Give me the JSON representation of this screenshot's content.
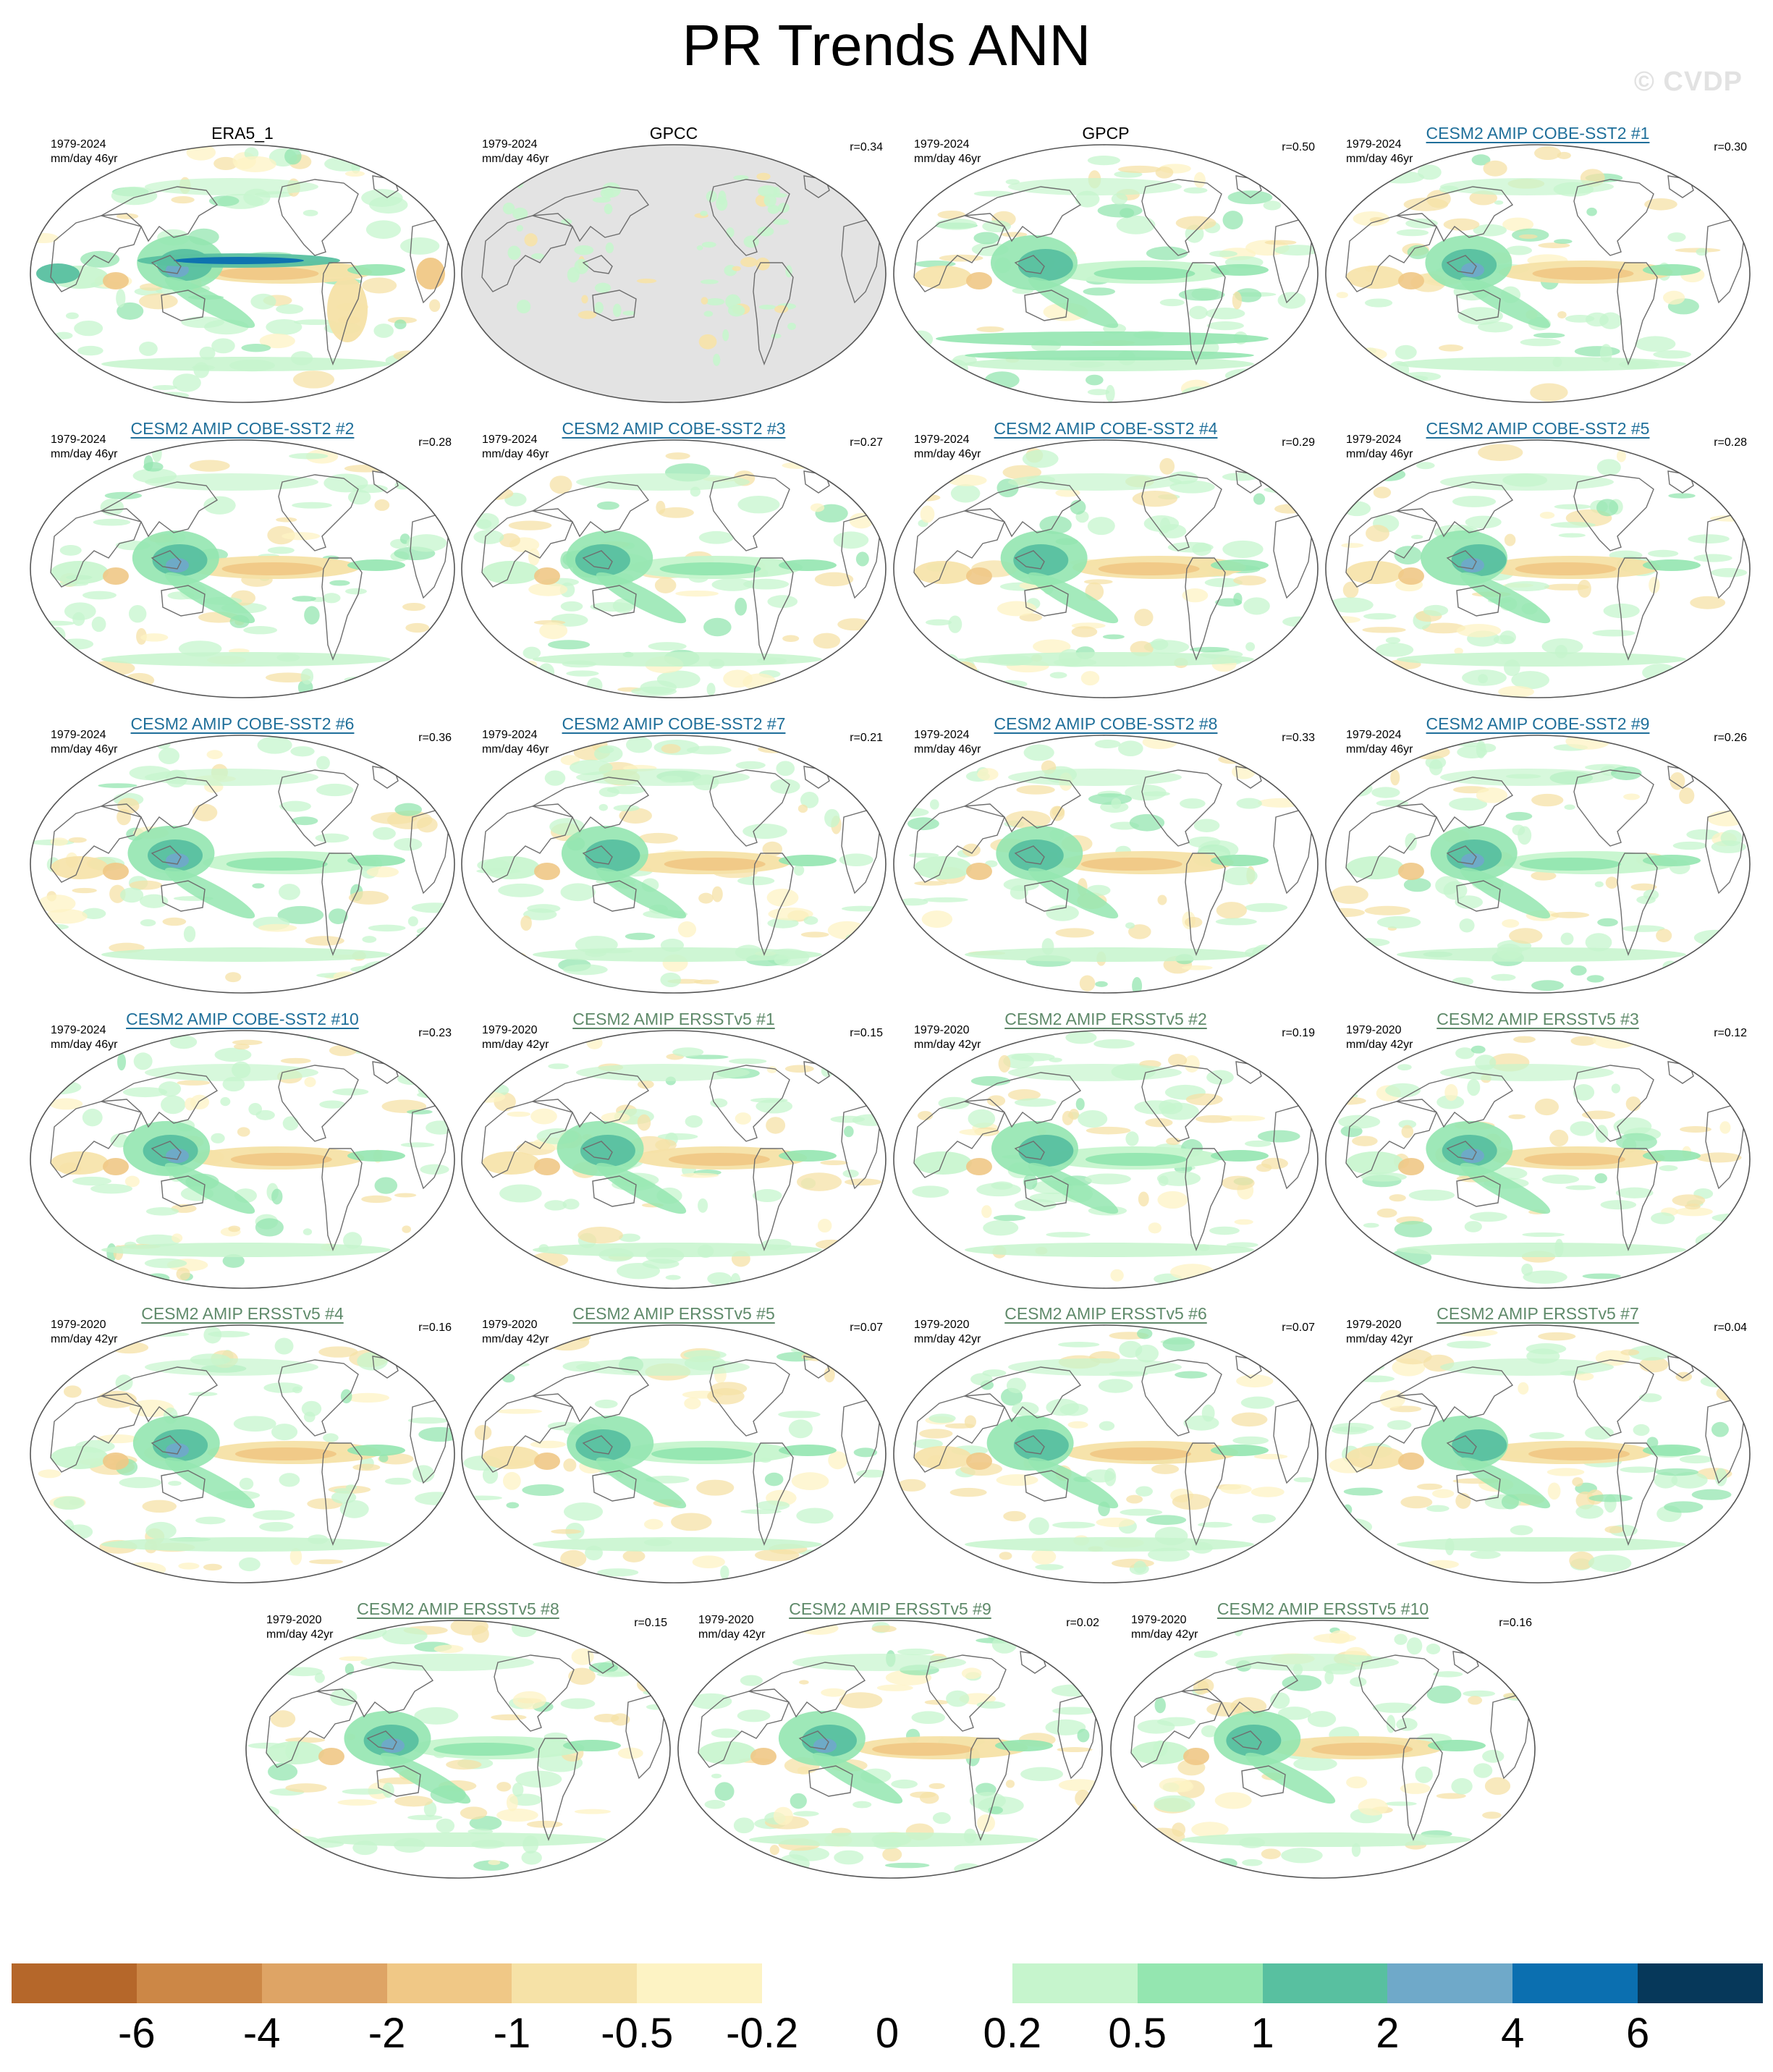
{
  "title": "PR Trends ANN",
  "watermark": "© CVDP",
  "panels": [
    {
      "title": "ERA5_1",
      "kind": "obs",
      "period": "1979-2024",
      "units": "mm/day 46yr",
      "r": ""
    },
    {
      "title": "GPCC",
      "kind": "obs",
      "period": "1979-2024",
      "units": "mm/day 46yr",
      "r": "r=0.34",
      "land_only": true
    },
    {
      "title": "GPCP",
      "kind": "obs",
      "period": "1979-2024",
      "units": "mm/day 46yr",
      "r": "r=0.50"
    },
    {
      "title": "CESM2 AMIP COBE-SST2 #1",
      "kind": "cobe",
      "period": "1979-2024",
      "units": "mm/day 46yr",
      "r": "r=0.30"
    },
    {
      "title": "CESM2 AMIP COBE-SST2 #2",
      "kind": "cobe",
      "period": "1979-2024",
      "units": "mm/day 46yr",
      "r": "r=0.28"
    },
    {
      "title": "CESM2 AMIP COBE-SST2 #3",
      "kind": "cobe",
      "period": "1979-2024",
      "units": "mm/day 46yr",
      "r": "r=0.27"
    },
    {
      "title": "CESM2 AMIP COBE-SST2 #4",
      "kind": "cobe",
      "period": "1979-2024",
      "units": "mm/day 46yr",
      "r": "r=0.29"
    },
    {
      "title": "CESM2 AMIP COBE-SST2 #5",
      "kind": "cobe",
      "period": "1979-2024",
      "units": "mm/day 46yr",
      "r": "r=0.28"
    },
    {
      "title": "CESM2 AMIP COBE-SST2 #6",
      "kind": "cobe",
      "period": "1979-2024",
      "units": "mm/day 46yr",
      "r": "r=0.36"
    },
    {
      "title": "CESM2 AMIP COBE-SST2 #7",
      "kind": "cobe",
      "period": "1979-2024",
      "units": "mm/day 46yr",
      "r": "r=0.21"
    },
    {
      "title": "CESM2 AMIP COBE-SST2 #8",
      "kind": "cobe",
      "period": "1979-2024",
      "units": "mm/day 46yr",
      "r": "r=0.33"
    },
    {
      "title": "CESM2 AMIP COBE-SST2 #9",
      "kind": "cobe",
      "period": "1979-2024",
      "units": "mm/day 46yr",
      "r": "r=0.26"
    },
    {
      "title": "CESM2 AMIP COBE-SST2 #10",
      "kind": "cobe",
      "period": "1979-2024",
      "units": "mm/day 46yr",
      "r": "r=0.23"
    },
    {
      "title": "CESM2 AMIP ERSSTv5 #1",
      "kind": "ersst",
      "period": "1979-2020",
      "units": "mm/day 42yr",
      "r": "r=0.15"
    },
    {
      "title": "CESM2 AMIP ERSSTv5 #2",
      "kind": "ersst",
      "period": "1979-2020",
      "units": "mm/day 42yr",
      "r": "r=0.19"
    },
    {
      "title": "CESM2 AMIP ERSSTv5 #3",
      "kind": "ersst",
      "period": "1979-2020",
      "units": "mm/day 42yr",
      "r": "r=0.12"
    },
    {
      "title": "CESM2 AMIP ERSSTv5 #4",
      "kind": "ersst",
      "period": "1979-2020",
      "units": "mm/day 42yr",
      "r": "r=0.16"
    },
    {
      "title": "CESM2 AMIP ERSSTv5 #5",
      "kind": "ersst",
      "period": "1979-2020",
      "units": "mm/day 42yr",
      "r": "r=0.07"
    },
    {
      "title": "CESM2 AMIP ERSSTv5 #6",
      "kind": "ersst",
      "period": "1979-2020",
      "units": "mm/day 42yr",
      "r": "r=0.07"
    },
    {
      "title": "CESM2 AMIP ERSSTv5 #7",
      "kind": "ersst",
      "period": "1979-2020",
      "units": "mm/day 42yr",
      "r": "r=0.04"
    },
    {
      "title": "CESM2 AMIP ERSSTv5 #8",
      "kind": "ersst",
      "period": "1979-2020",
      "units": "mm/day 42yr",
      "r": "r=0.15"
    },
    {
      "title": "CESM2 AMIP ERSSTv5 #9",
      "kind": "ersst",
      "period": "1979-2020",
      "units": "mm/day 42yr",
      "r": "r=0.02"
    },
    {
      "title": "CESM2 AMIP ERSSTv5 #10",
      "kind": "ersst",
      "period": "1979-2020",
      "units": "mm/day 42yr",
      "r": "r=0.16"
    }
  ],
  "colorbar": {
    "colors": [
      "#b5672a",
      "#cc8746",
      "#dea465",
      "#f0c886",
      "#f6e2a7",
      "#fdf3c4",
      "#ffffff",
      "#ffffff",
      "#c6f5cd",
      "#94e6b0",
      "#58c0a0",
      "#6fa9c9",
      "#0b6fb0",
      "#06385a"
    ],
    "labels": [
      "-6",
      "-4",
      "-2",
      "-1",
      "-0.5",
      "-0.2",
      "0",
      "0.2",
      "0.5",
      "1",
      "2",
      "4",
      "6"
    ]
  },
  "colors": {
    "coastline": "#6e6e6e",
    "map_border": "#555555",
    "missing": "#e3e3e3"
  }
}
